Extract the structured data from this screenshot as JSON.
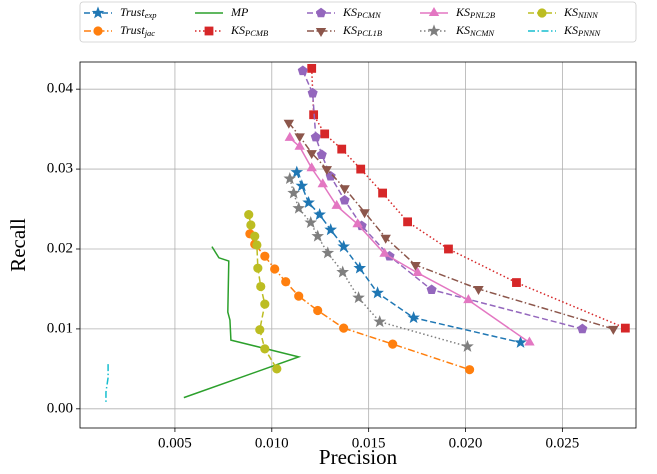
{
  "chart_data": {
    "type": "line",
    "xlabel": "Precision",
    "ylabel": "Recall",
    "xlim": [
      0.0001,
      0.0288
    ],
    "ylim": [
      -0.0024,
      0.0434
    ],
    "xticks": [
      0.005,
      {
        "value": 0.01,
        "label": "0.010"
      },
      0.015,
      {
        "value": 0.02,
        "label": "0.020"
      },
      0.025
    ],
    "yticks": [
      {
        "value": 0,
        "label": "0.00"
      },
      0.01,
      0.02,
      0.03,
      0.04
    ],
    "grid": true,
    "legend": "upper center outside",
    "series": [
      {
        "name": "Trust",
        "subscript": "exp",
        "color": "#1f77b4",
        "linestyle": "dashed",
        "marker": "star",
        "x": [
          0.01129,
          0.01155,
          0.0119,
          0.01247,
          0.01304,
          0.01371,
          0.01454,
          0.01546,
          0.01732,
          0.02284
        ],
        "values": [
          0.0296,
          0.0279,
          0.0258,
          0.0243,
          0.0224,
          0.0203,
          0.0176,
          0.0145,
          0.0114,
          0.0083
        ]
      },
      {
        "name": "Trust",
        "subscript": "jac",
        "color": "#ff7f0e",
        "linestyle": "dashdot",
        "marker": "circle",
        "x": [
          0.00887,
          0.00912,
          0.00964,
          0.01015,
          0.01072,
          0.01139,
          0.01237,
          0.01371,
          0.01624,
          0.02021
        ],
        "values": [
          0.0219,
          0.0206,
          0.0191,
          0.0175,
          0.0159,
          0.0141,
          0.0123,
          0.0101,
          0.0081,
          0.0049
        ]
      },
      {
        "name": "MP",
        "color": "#2ca02c",
        "linestyle": "solid",
        "marker": "none",
        "x": [
          0.00691,
          0.00727,
          0.00778,
          0.00773,
          0.00784,
          0.00789,
          0.01139,
          0.00546
        ],
        "values": [
          0.0203,
          0.0189,
          0.0185,
          0.0121,
          0.0111,
          0.0086,
          0.0065,
          0.0014
        ]
      },
      {
        "name": "KS",
        "subscript": "PCMB",
        "color": "#d62728",
        "linestyle": "dotted",
        "marker": "square",
        "x": [
          0.01206,
          0.01216,
          0.01273,
          0.01361,
          0.01459,
          0.01572,
          0.01701,
          0.01912,
          0.02263,
          0.02825
        ],
        "values": [
          0.0426,
          0.0368,
          0.0344,
          0.0325,
          0.03,
          0.027,
          0.0234,
          0.02,
          0.0158,
          0.0101
        ]
      },
      {
        "name": "KS",
        "subscript": "PCMN",
        "color": "#9467bd",
        "linestyle": "dashed",
        "marker": "pentagon",
        "x": [
          0.0116,
          0.01211,
          0.01227,
          0.01258,
          0.01304,
          0.01376,
          0.01464,
          0.01608,
          0.01825,
          0.02603
        ],
        "values": [
          0.0423,
          0.0395,
          0.034,
          0.0318,
          0.0291,
          0.0261,
          0.0229,
          0.0191,
          0.0149,
          0.01
        ]
      },
      {
        "name": "KS",
        "subscript": "PCL1B",
        "color": "#8c564b",
        "linestyle": "dashdot",
        "marker": "triangle-down",
        "x": [
          0.01088,
          0.01144,
          0.01206,
          0.01284,
          0.01376,
          0.01479,
          0.01588,
          0.01742,
          0.02067,
          0.02763
        ],
        "values": [
          0.0358,
          0.0341,
          0.032,
          0.03,
          0.0276,
          0.0246,
          0.0214,
          0.018,
          0.015,
          0.01
        ]
      },
      {
        "name": "KS",
        "subscript": "PNL2B",
        "color": "#e377c2",
        "linestyle": "solid",
        "marker": "triangle-up",
        "x": [
          0.01093,
          0.01144,
          0.01206,
          0.01263,
          0.01335,
          0.01443,
          0.01582,
          0.01753,
          0.02015,
          0.0233
        ],
        "values": [
          0.0339,
          0.0328,
          0.0301,
          0.0281,
          0.0254,
          0.0231,
          0.0194,
          0.017,
          0.0136,
          0.0083
        ]
      },
      {
        "name": "KS",
        "subscript": "NCMN",
        "color": "#7f7f7f",
        "linestyle": "dotted",
        "marker": "star",
        "x": [
          0.01093,
          0.01113,
          0.01139,
          0.01201,
          0.01237,
          0.01289,
          0.01366,
          0.01448,
          0.01557,
          0.0201
        ],
        "values": [
          0.0288,
          0.027,
          0.0251,
          0.0233,
          0.0216,
          0.0195,
          0.0171,
          0.0139,
          0.0109,
          0.0078
        ]
      },
      {
        "name": "KS",
        "subscript": "NINN",
        "color": "#bcbd22",
        "linestyle": "dashed",
        "marker": "circle",
        "x": [
          0.00881,
          0.00892,
          0.00912,
          0.00923,
          0.00928,
          0.00943,
          0.00964,
          0.00938,
          0.00964,
          0.01026
        ],
        "values": [
          0.0243,
          0.023,
          0.0216,
          0.0205,
          0.0176,
          0.0153,
          0.0131,
          0.0099,
          0.0075,
          0.005
        ]
      },
      {
        "name": "KS",
        "subscript": "PNNN",
        "color": "#17becf",
        "linestyle": "dashdot",
        "marker": "none",
        "x": [
          0.00155,
          0.00155,
          0.00144,
          0.00144
        ],
        "values": [
          0.0056,
          0.0039,
          0.0021,
          0.0006
        ]
      }
    ]
  }
}
